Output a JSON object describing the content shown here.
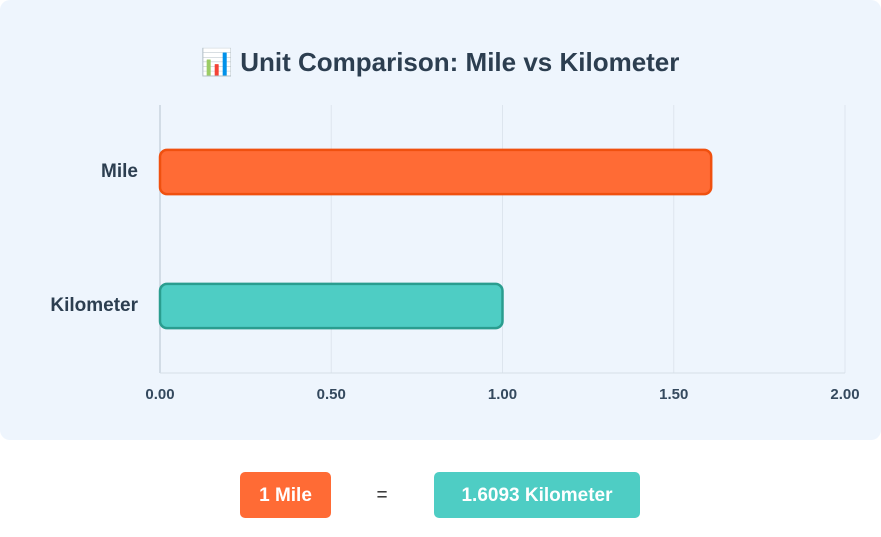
{
  "chart_data": {
    "type": "bar",
    "orientation": "horizontal",
    "title": "📊 Unit Comparison: Mile vs Kilometer",
    "categories": [
      "Mile",
      "Kilometer"
    ],
    "values": [
      1.6093,
      1
    ],
    "colors": [
      "#ff6b35",
      "#4ecdc4"
    ],
    "border_colors": [
      "#f0500f",
      "#2a9d8f"
    ],
    "xlim": [
      0,
      2
    ],
    "xticks": [
      {
        "value": 0,
        "label": "0.00"
      },
      {
        "value": 0.5,
        "label": "0.50"
      },
      {
        "value": 1,
        "label": "1.00"
      },
      {
        "value": 1.5,
        "label": "1.50"
      },
      {
        "value": 2,
        "label": "2.00"
      }
    ],
    "grid": true
  },
  "equation": {
    "left": "1 Mile",
    "equals": "=",
    "right": "1.6093 Kilometer"
  }
}
